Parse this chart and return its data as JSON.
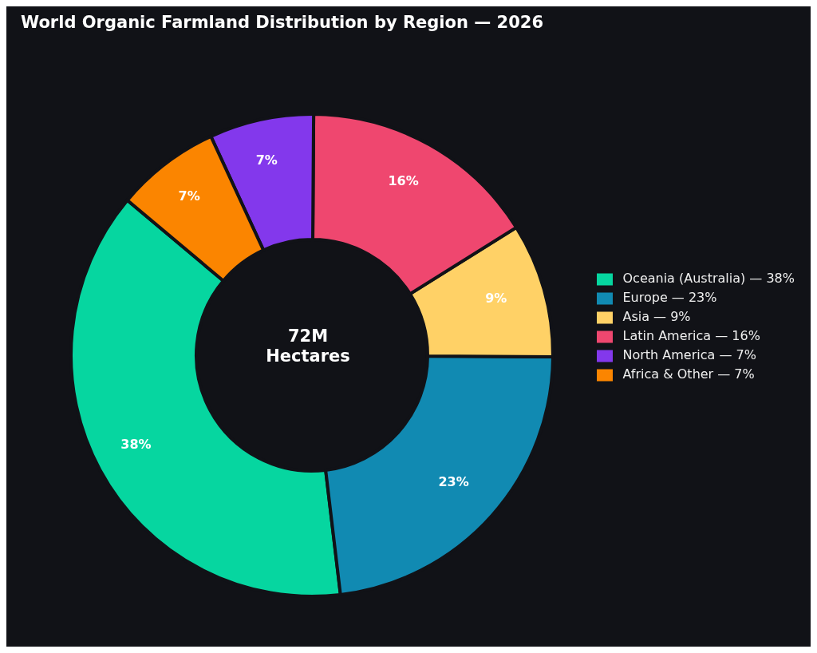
{
  "chart_data": {
    "type": "donut",
    "title": "World Organic Farmland Distribution by Region — 2026",
    "categories": [
      "Oceania (Australia) — 38%",
      "Europe — 23%",
      "Asia — 9%",
      "Latin America — 16%",
      "North America — 7%",
      "Africa & Other — 7%"
    ],
    "values": [
      38,
      23,
      9,
      16,
      7,
      7
    ],
    "colors": [
      "#06d6a0",
      "#118ab2",
      "#ffd166",
      "#ef476f",
      "#8338ec",
      "#fb8500"
    ],
    "value_labels": [
      "38%",
      "23%",
      "9%",
      "16%",
      "7%",
      "7%"
    ],
    "annotations": [
      "72M\nHectares"
    ],
    "legend": "right"
  }
}
